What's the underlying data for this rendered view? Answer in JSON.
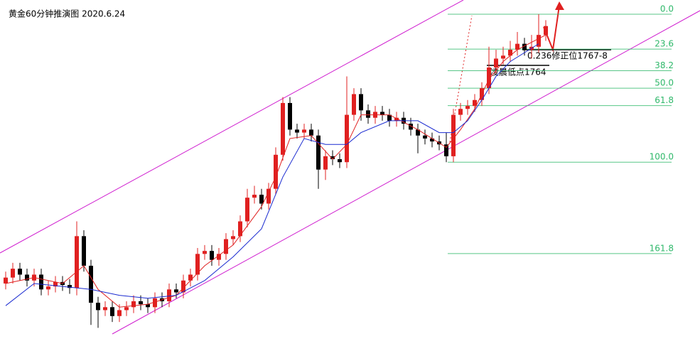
{
  "chart_data": {
    "type": "candlestick",
    "title": "黄金60分钟推演图  2020.6.24",
    "ylim": [
      -9.6,
      231
    ],
    "inverted": true,
    "up_color": "#e02020",
    "down_color": "#000000",
    "open": [
      182,
      178,
      172,
      176,
      180,
      176,
      186,
      184,
      181,
      183,
      185,
      150,
      170,
      195,
      200,
      198,
      204,
      200,
      198,
      194,
      196,
      198,
      192,
      194,
      186,
      188,
      180,
      176,
      162,
      160,
      166,
      162,
      152,
      150,
      140,
      124,
      122,
      128,
      118,
      95,
      60,
      78,
      80,
      78,
      82,
      105,
      96,
      98,
      100,
      68,
      54,
      65,
      70,
      66,
      68,
      72,
      70,
      74,
      78,
      82,
      84,
      86,
      88,
      96,
      68,
      64,
      62,
      58,
      50,
      36,
      30,
      28,
      24,
      20,
      24,
      22,
      14
    ],
    "close": [
      178,
      172,
      176,
      180,
      176,
      186,
      184,
      181,
      183,
      185,
      150,
      170,
      195,
      200,
      198,
      204,
      200,
      198,
      194,
      196,
      198,
      192,
      194,
      186,
      188,
      180,
      176,
      162,
      160,
      166,
      162,
      152,
      150,
      140,
      124,
      122,
      128,
      118,
      95,
      60,
      78,
      80,
      78,
      82,
      105,
      96,
      98,
      100,
      68,
      54,
      65,
      70,
      66,
      68,
      72,
      70,
      74,
      78,
      82,
      84,
      86,
      88,
      96,
      68,
      64,
      62,
      58,
      50,
      36,
      30,
      28,
      24,
      20,
      24,
      22,
      14,
      8
    ],
    "wick_top": [
      174,
      168,
      168,
      172,
      172,
      172,
      180,
      177,
      177,
      179,
      140,
      146,
      166,
      191,
      194,
      194,
      196,
      194,
      190,
      190,
      192,
      188,
      188,
      182,
      182,
      176,
      172,
      158,
      156,
      156,
      158,
      148,
      146,
      136,
      118,
      116,
      118,
      114,
      90,
      56,
      56,
      74,
      74,
      74,
      78,
      92,
      92,
      94,
      42,
      50,
      50,
      61,
      62,
      62,
      64,
      66,
      66,
      70,
      74,
      78,
      80,
      82,
      80,
      64,
      60,
      58,
      54,
      46,
      22,
      24,
      22,
      18,
      12,
      16,
      14,
      0,
      4
    ],
    "wick_bottom": [
      186,
      182,
      180,
      184,
      184,
      190,
      190,
      188,
      187,
      189,
      190,
      174,
      210,
      212,
      204,
      208,
      208,
      204,
      202,
      200,
      202,
      202,
      198,
      198,
      192,
      192,
      184,
      180,
      166,
      170,
      170,
      166,
      156,
      154,
      144,
      128,
      132,
      132,
      122,
      99,
      82,
      84,
      84,
      86,
      118,
      112,
      102,
      104,
      104,
      72,
      72,
      74,
      74,
      72,
      76,
      76,
      78,
      82,
      94,
      88,
      90,
      92,
      100,
      100,
      72,
      68,
      66,
      62,
      54,
      40,
      34,
      32,
      28,
      28,
      30,
      26,
      18
    ],
    "ma_fast": {
      "color": "#e02020",
      "x": [
        0,
        4,
        8,
        11,
        13,
        16,
        20,
        24,
        28,
        32,
        36,
        38,
        40,
        43,
        46,
        48,
        50,
        54,
        58,
        62,
        64,
        66,
        68,
        70,
        72,
        76
      ],
      "values": [
        182,
        178,
        182,
        170,
        186,
        198,
        196,
        190,
        170,
        156,
        130,
        110,
        84,
        82,
        98,
        88,
        68,
        68,
        78,
        90,
        78,
        64,
        44,
        32,
        24,
        14
      ]
    },
    "ma_slow": {
      "color": "#1a2ad0",
      "x": [
        0,
        4,
        8,
        12,
        16,
        20,
        24,
        28,
        32,
        36,
        39,
        42,
        45,
        48,
        50,
        54,
        58,
        61,
        63,
        65,
        67,
        69,
        71,
        75
      ],
      "values": [
        197,
        182,
        184,
        186,
        190,
        192,
        190,
        180,
        164,
        145,
        110,
        84,
        88,
        88,
        80,
        72,
        72,
        80,
        80,
        72,
        58,
        42,
        32,
        20
      ]
    },
    "fib_color": "#2fb86a",
    "fib_levels": [
      {
        "value": 0,
        "label": "0.0"
      },
      {
        "value": 23.6,
        "label": "23.6"
      },
      {
        "value": 38.2,
        "label": "38.2"
      },
      {
        "value": 50,
        "label": "50.0"
      },
      {
        "value": 61.8,
        "label": "61.8"
      },
      {
        "value": 100,
        "label": "100.0"
      },
      {
        "value": 161.8,
        "label": "161.8"
      }
    ],
    "annotations": [
      "0.236修正位1767-8",
      "凌晨低点1764"
    ]
  }
}
